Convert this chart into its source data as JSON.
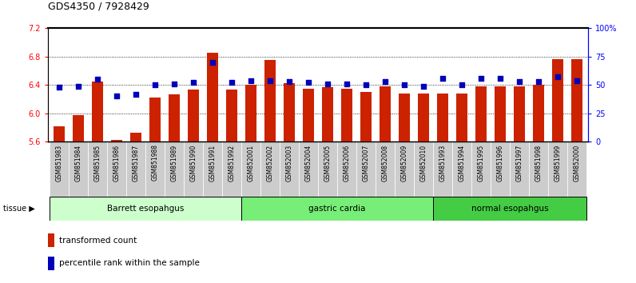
{
  "title": "GDS4350 / 7928429",
  "samples": [
    "GSM851983",
    "GSM851984",
    "GSM851985",
    "GSM851986",
    "GSM851987",
    "GSM851988",
    "GSM851989",
    "GSM851990",
    "GSM851991",
    "GSM851992",
    "GSM852001",
    "GSM852002",
    "GSM852003",
    "GSM852004",
    "GSM852005",
    "GSM852006",
    "GSM852007",
    "GSM852008",
    "GSM852009",
    "GSM852010",
    "GSM851993",
    "GSM851994",
    "GSM851995",
    "GSM851996",
    "GSM851997",
    "GSM851998",
    "GSM851999",
    "GSM852000"
  ],
  "bar_values": [
    5.82,
    5.97,
    6.45,
    5.62,
    5.72,
    6.22,
    6.27,
    6.33,
    6.85,
    6.33,
    6.4,
    6.75,
    6.42,
    6.35,
    6.37,
    6.35,
    6.3,
    6.38,
    6.28,
    6.28,
    6.28,
    6.28,
    6.38,
    6.38,
    6.38,
    6.4,
    6.76,
    6.76
  ],
  "percentile_values": [
    48,
    49,
    55,
    40,
    42,
    50,
    51,
    52,
    70,
    52,
    54,
    54,
    53,
    52,
    51,
    51,
    50,
    53,
    50,
    49,
    56,
    50,
    56,
    56,
    53,
    53,
    57,
    54
  ],
  "groups": [
    {
      "label": "Barrett esopahgus",
      "start": 0,
      "end": 9,
      "color": "#ccffcc"
    },
    {
      "label": "gastric cardia",
      "start": 10,
      "end": 19,
      "color": "#77ee77"
    },
    {
      "label": "normal esopahgus",
      "start": 20,
      "end": 27,
      "color": "#44cc44"
    }
  ],
  "ylim_left": [
    5.6,
    7.2
  ],
  "ylim_right": [
    0,
    100
  ],
  "yticks_left": [
    5.6,
    6.0,
    6.4,
    6.8,
    7.2
  ],
  "yticks_right": [
    0,
    25,
    50,
    75,
    100
  ],
  "ytick_labels_right": [
    "0",
    "25",
    "50",
    "75",
    "100%"
  ],
  "bar_color": "#cc2200",
  "dot_color": "#0000bb",
  "bar_bottom": 5.6,
  "label_bg_color": "#cccccc"
}
